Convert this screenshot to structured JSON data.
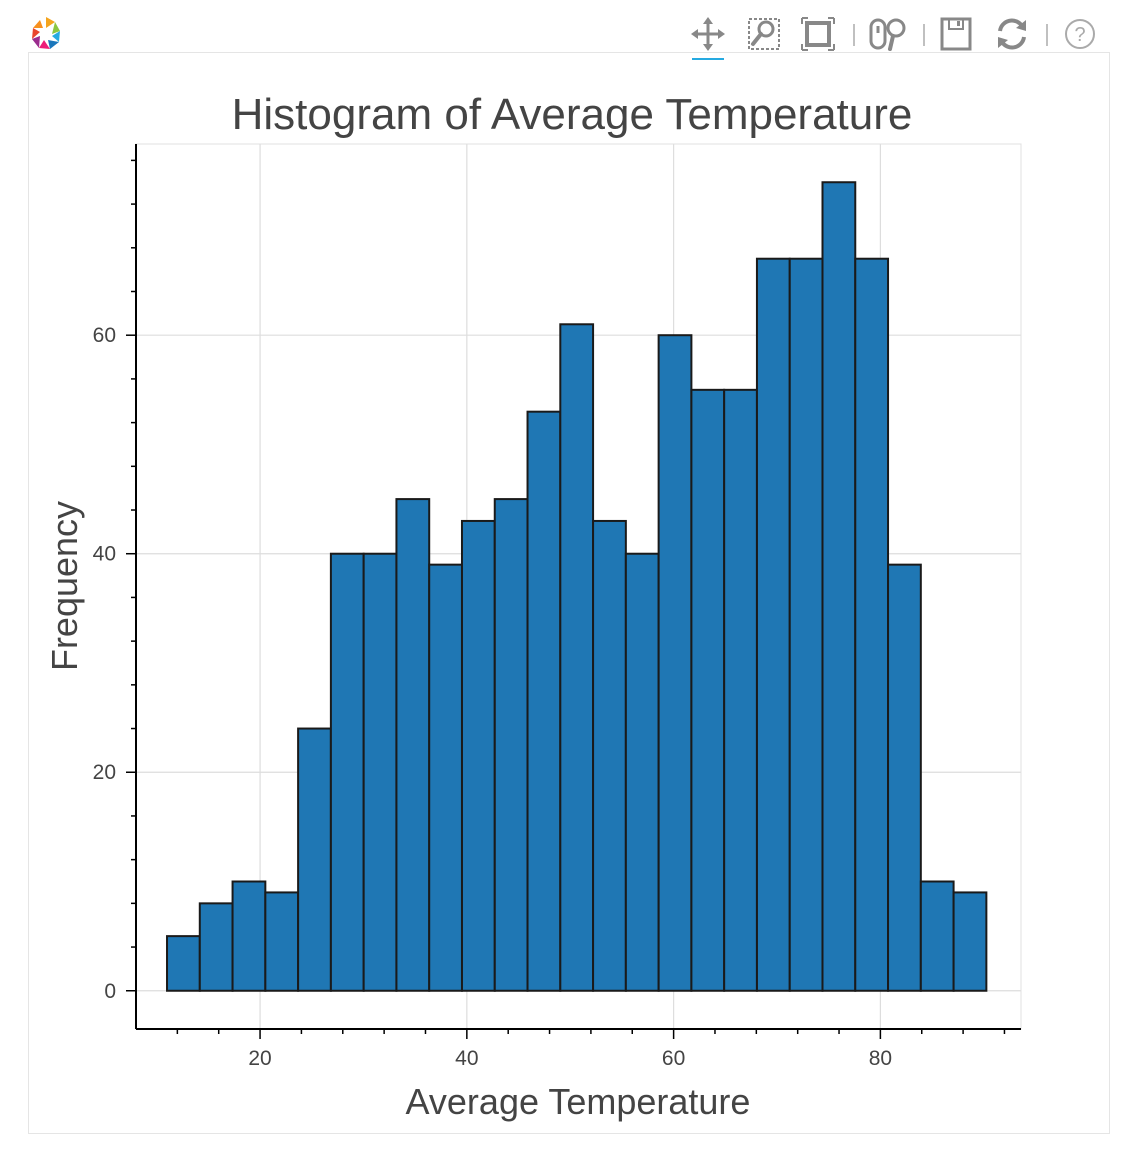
{
  "toolbar": {
    "tools": [
      {
        "name": "pan-tool-icon",
        "active": true
      },
      {
        "name": "box-zoom-tool-icon",
        "active": false
      },
      {
        "name": "box-select-tool-icon",
        "active": false
      },
      {
        "name": "wheel-zoom-tool-icon",
        "active": false
      },
      {
        "name": "save-tool-icon",
        "active": false
      },
      {
        "name": "reset-tool-icon",
        "active": false
      },
      {
        "name": "help-tool-icon",
        "active": false
      }
    ]
  },
  "colors": {
    "bar_fill": "#1f77b4",
    "bar_stroke": "#1a1a1a",
    "grid": "#dddddd",
    "toolbar_active": "#26aae1"
  },
  "chart_data": {
    "type": "bar",
    "title": "Histogram of Average Temperature",
    "xlabel": "Average Temperature",
    "ylabel": "Frequency",
    "bin_start": 11,
    "bin_width": 3.17,
    "values": [
      5,
      8,
      10,
      9,
      24,
      40,
      40,
      45,
      39,
      43,
      45,
      53,
      61,
      43,
      40,
      60,
      55,
      55,
      67,
      67,
      74,
      67,
      39,
      10,
      9
    ],
    "xlim": [
      8,
      93.6
    ],
    "ylim": [
      -3.5,
      77.5
    ],
    "xticks": [
      20,
      40,
      60,
      80
    ],
    "yticks": [
      0,
      20,
      40,
      60
    ],
    "grid": true
  }
}
